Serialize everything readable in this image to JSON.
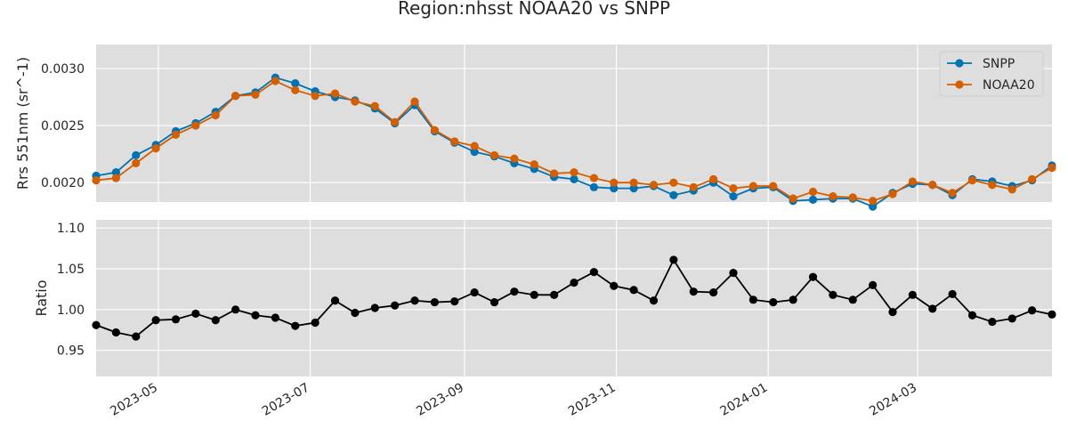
{
  "chart_data": {
    "type": "line",
    "title": "Region:nhsst NOAA20 vs SNPP",
    "grid": true,
    "legend_position": "top-right",
    "x_range": [
      "2023-04-06",
      "2024-04-24"
    ],
    "x_ticks": [
      {
        "date": "2023-05-01",
        "label": "2023-05"
      },
      {
        "date": "2023-07-01",
        "label": "2023-07"
      },
      {
        "date": "2023-09-01",
        "label": "2023-09"
      },
      {
        "date": "2023-11-01",
        "label": "2023-11"
      },
      {
        "date": "2024-01-01",
        "label": "2024-01"
      },
      {
        "date": "2024-03-01",
        "label": "2024-03"
      }
    ],
    "x": [
      "2023-04-06",
      "2023-04-14",
      "2023-04-22",
      "2023-04-30",
      "2023-05-08",
      "2023-05-16",
      "2023-05-24",
      "2023-06-01",
      "2023-06-09",
      "2023-06-17",
      "2023-06-25",
      "2023-07-03",
      "2023-07-11",
      "2023-07-19",
      "2023-07-27",
      "2023-08-04",
      "2023-08-12",
      "2023-08-20",
      "2023-08-28",
      "2023-09-05",
      "2023-09-13",
      "2023-09-21",
      "2023-09-29",
      "2023-10-07",
      "2023-10-15",
      "2023-10-23",
      "2023-10-31",
      "2023-11-08",
      "2023-11-16",
      "2023-11-24",
      "2023-12-02",
      "2023-12-10",
      "2023-12-18",
      "2023-12-26",
      "2024-01-03",
      "2024-01-11",
      "2024-01-19",
      "2024-01-27",
      "2024-02-04",
      "2024-02-12",
      "2024-02-20",
      "2024-02-28",
      "2024-03-07",
      "2024-03-15",
      "2024-03-23",
      "2024-03-31",
      "2024-04-08",
      "2024-04-16",
      "2024-04-24"
    ],
    "panels": [
      {
        "ylabel": "Rrs 551nm (sr^-1)",
        "ylim": [
          0.00183,
          0.00321
        ],
        "yticks": [
          {
            "value": 0.002,
            "label": "0.0020"
          },
          {
            "value": 0.0025,
            "label": "0.0025"
          },
          {
            "value": 0.003,
            "label": "0.0030"
          }
        ],
        "series": [
          {
            "name": "SNPP",
            "color": "#0072B2",
            "values": [
              0.00206,
              0.00209,
              0.00224,
              0.00233,
              0.00245,
              0.00252,
              0.00262,
              0.00276,
              0.00279,
              0.00292,
              0.00287,
              0.0028,
              0.00275,
              0.00272,
              0.00265,
              0.00252,
              0.00268,
              0.00245,
              0.00235,
              0.00227,
              0.00223,
              0.00217,
              0.00212,
              0.00205,
              0.00203,
              0.00196,
              0.00195,
              0.00195,
              0.00197,
              0.00189,
              0.00193,
              0.002,
              0.00188,
              0.00195,
              0.00196,
              0.00184,
              0.00185,
              0.00186,
              0.00186,
              0.00179,
              0.00191,
              0.00199,
              0.00198,
              0.00189,
              0.00203,
              0.00201,
              0.00197,
              0.00202,
              0.00215
            ]
          },
          {
            "name": "NOAA20",
            "color": "#D55E00",
            "values": [
              0.00202,
              0.00204,
              0.00217,
              0.0023,
              0.00242,
              0.0025,
              0.00259,
              0.00276,
              0.00277,
              0.00289,
              0.00281,
              0.00276,
              0.00278,
              0.00271,
              0.00267,
              0.00253,
              0.00271,
              0.00246,
              0.00236,
              0.00232,
              0.00224,
              0.00221,
              0.00216,
              0.00208,
              0.00209,
              0.00204,
              0.002,
              0.002,
              0.00198,
              0.002,
              0.00196,
              0.00203,
              0.00195,
              0.00197,
              0.00197,
              0.00186,
              0.00192,
              0.00188,
              0.00187,
              0.00184,
              0.0019,
              0.00201,
              0.00198,
              0.00191,
              0.00202,
              0.00198,
              0.00194,
              0.00203,
              0.00213
            ]
          }
        ]
      },
      {
        "ylabel": "Ratio",
        "ylim": [
          0.918,
          1.11
        ],
        "yticks": [
          {
            "value": 0.95,
            "label": "0.95"
          },
          {
            "value": 1.0,
            "label": "1.00"
          },
          {
            "value": 1.05,
            "label": "1.05"
          },
          {
            "value": 1.1,
            "label": "1.10"
          }
        ],
        "series": [
          {
            "name": "",
            "color": "#000000",
            "values": [
              0.981,
              0.972,
              0.967,
              0.987,
              0.988,
              0.995,
              0.987,
              1.0,
              0.993,
              0.99,
              0.98,
              0.984,
              1.011,
              0.996,
              1.002,
              1.005,
              1.011,
              1.009,
              1.01,
              1.021,
              1.009,
              1.022,
              1.018,
              1.018,
              1.033,
              1.046,
              1.029,
              1.024,
              1.011,
              1.061,
              1.022,
              1.021,
              1.045,
              1.012,
              1.009,
              1.012,
              1.04,
              1.018,
              1.012,
              1.03,
              0.997,
              1.018,
              1.001,
              1.019,
              0.993,
              0.985,
              0.989,
              0.999,
              0.994
            ]
          }
        ]
      }
    ]
  }
}
